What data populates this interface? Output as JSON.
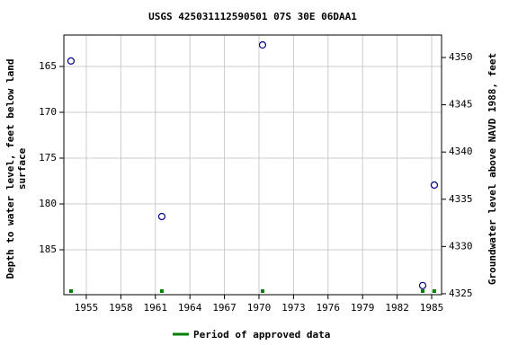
{
  "chart_data": {
    "type": "scatter",
    "title": "USGS 425031112590501 07S 30E 06DAA1",
    "y_label": [
      "Depth to water level, feet below land",
      "surface"
    ],
    "y2_label": "Groundwater level above NAVD 1988, feet",
    "x": [
      1953.67,
      1961.56,
      1970.31,
      1984.22,
      1985.23
    ],
    "values": [
      164.4,
      181.37,
      162.65,
      188.9,
      177.94
    ],
    "color": "#00008b",
    "xlim": [
      1953.05,
      1985.86
    ],
    "xticks": [
      1955,
      1958,
      1961,
      1964,
      1967,
      1970,
      1973,
      1976,
      1979,
      1982,
      1985
    ],
    "ylim": [
      161.57,
      189.9
    ],
    "y_inverted": true,
    "yticks": [
      165,
      170,
      175,
      180,
      185
    ],
    "y2lim": [
      4324.9,
      4352.38
    ],
    "y2ticks": [
      4325,
      4330,
      4335,
      4340,
      4345,
      4350
    ],
    "grid": true,
    "approved": {
      "name": "Period of approved data",
      "color": "#008000",
      "x": [
        1953.67,
        1961.56,
        1970.31,
        1984.22,
        1985.23
      ]
    }
  }
}
